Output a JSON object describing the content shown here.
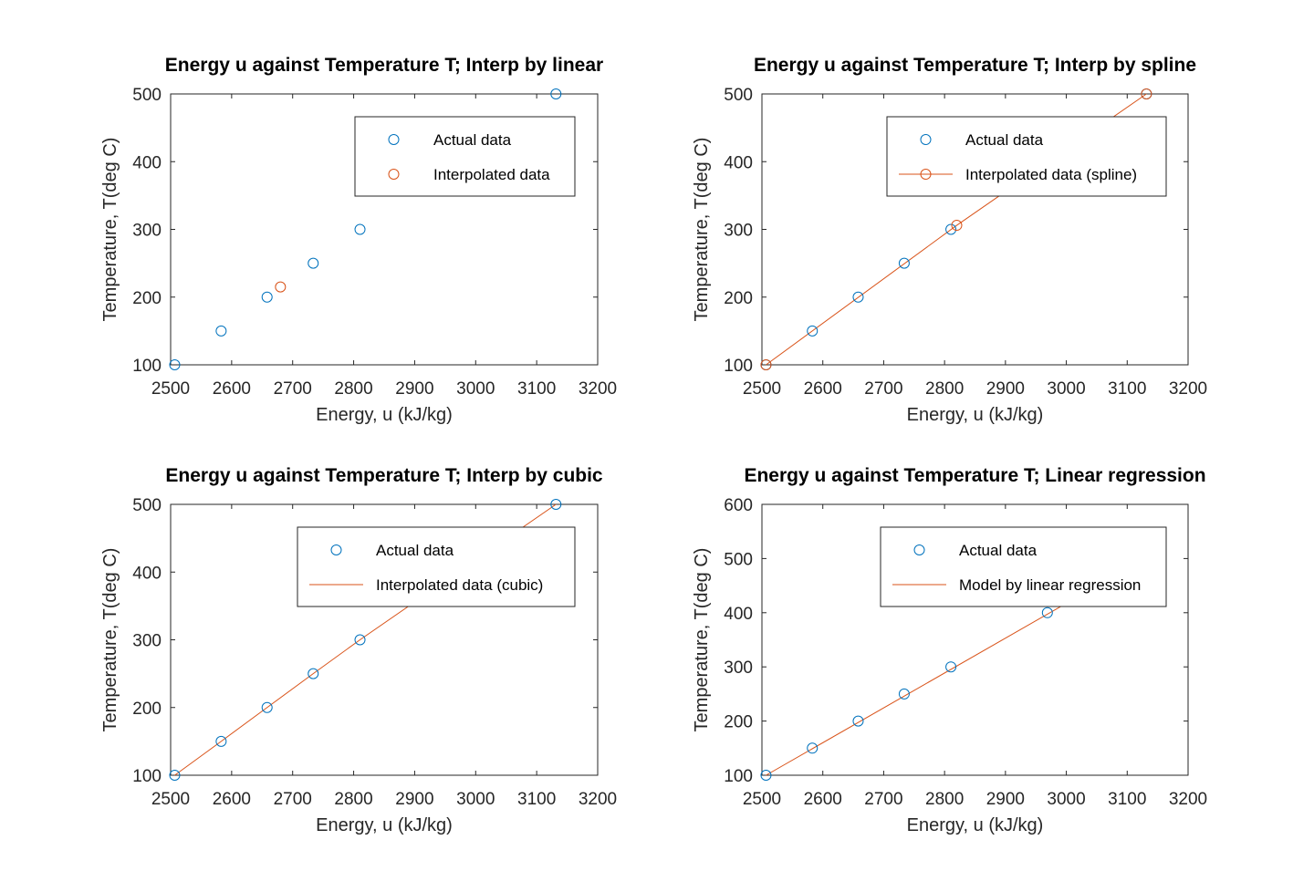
{
  "colors": {
    "actual": "#0072BD",
    "interp": "#D95319",
    "axis": "#262626",
    "background": "#ffffff"
  },
  "chart_data": [
    {
      "type": "scatter",
      "title": "Energy u against Temperature T; Interp by linear",
      "xlabel": "Energy, u (kJ/kg)",
      "ylabel": "Temperature, T(deg C)",
      "xlim": [
        2500,
        3200
      ],
      "ylim": [
        100,
        500
      ],
      "xticks": [
        "2500",
        "2600",
        "2700",
        "2800",
        "2900",
        "3000",
        "3100",
        "3200"
      ],
      "yticks": [
        "100",
        "200",
        "300",
        "400",
        "500"
      ],
      "legend_position": "top-right",
      "series": [
        {
          "name": "Actual data",
          "style": "markers",
          "color": "#0072BD",
          "x": [
            2506.7,
            2582.8,
            2658.1,
            2733.7,
            2810.4,
            3131.6
          ],
          "y": [
            100,
            150,
            200,
            250,
            300,
            500
          ]
        },
        {
          "name": "Interpolated data",
          "style": "markers",
          "color": "#D95319",
          "x": [
            2680
          ],
          "y": [
            215
          ]
        }
      ]
    },
    {
      "type": "line",
      "title": "Energy u against Temperature T; Interp by spline",
      "xlabel": "Energy, u (kJ/kg)",
      "ylabel": "Temperature, T(deg C)",
      "xlim": [
        2500,
        3200
      ],
      "ylim": [
        100,
        500
      ],
      "xticks": [
        "2500",
        "2600",
        "2700",
        "2800",
        "2900",
        "3000",
        "3100",
        "3200"
      ],
      "yticks": [
        "100",
        "200",
        "300",
        "400",
        "500"
      ],
      "legend_position": "top-right",
      "series": [
        {
          "name": "Actual data",
          "style": "markers",
          "color": "#0072BD",
          "x": [
            2506.7,
            2582.8,
            2658.1,
            2733.7,
            2810.4,
            3131.6
          ],
          "y": [
            100,
            150,
            200,
            250,
            300,
            500
          ]
        },
        {
          "name": "Interpolated data (spline)",
          "style": "line-markers",
          "color": "#D95319",
          "x": [
            2506.7,
            2820,
            3131.6
          ],
          "y": [
            100,
            306,
            500
          ]
        }
      ]
    },
    {
      "type": "line",
      "title": "Energy u against Temperature T; Interp by cubic",
      "xlabel": "Energy, u (kJ/kg)",
      "ylabel": "Temperature, T(deg C)",
      "xlim": [
        2500,
        3200
      ],
      "ylim": [
        100,
        500
      ],
      "xticks": [
        "2500",
        "2600",
        "2700",
        "2800",
        "2900",
        "3000",
        "3100",
        "3200"
      ],
      "yticks": [
        "100",
        "200",
        "300",
        "400",
        "500"
      ],
      "legend_position": "top-right",
      "series": [
        {
          "name": "Actual data",
          "style": "markers",
          "color": "#0072BD",
          "x": [
            2506.7,
            2582.8,
            2658.1,
            2733.7,
            2810.4,
            3131.6
          ],
          "y": [
            100,
            150,
            200,
            250,
            300,
            500
          ]
        },
        {
          "name": "Interpolated data (cubic)",
          "style": "line",
          "color": "#D95319",
          "x": [
            2506.7,
            2582.8,
            2658.1,
            2733.7,
            2810.4,
            3131.6
          ],
          "y": [
            100,
            150,
            200,
            250,
            300,
            500
          ]
        }
      ]
    },
    {
      "type": "line",
      "title": "Energy u against Temperature T; Linear regression",
      "xlabel": "Energy, u (kJ/kg)",
      "ylabel": "Temperature, T(deg C)",
      "xlim": [
        2500,
        3200
      ],
      "ylim": [
        100,
        600
      ],
      "xticks": [
        "2500",
        "2600",
        "2700",
        "2800",
        "2900",
        "3000",
        "3100",
        "3200"
      ],
      "yticks": [
        "100",
        "200",
        "300",
        "400",
        "500",
        "600"
      ],
      "legend_position": "top-right",
      "series": [
        {
          "name": "Actual data",
          "style": "markers",
          "color": "#0072BD",
          "x": [
            2506.7,
            2582.8,
            2658.1,
            2733.7,
            2810.4,
            2968.9
          ],
          "y": [
            100,
            150,
            200,
            250,
            300,
            400
          ]
        },
        {
          "name": "Model by linear regression",
          "style": "line",
          "color": "#D95319",
          "x": [
            2506.7,
            3131.6
          ],
          "y": [
            100,
            502
          ]
        }
      ]
    }
  ]
}
